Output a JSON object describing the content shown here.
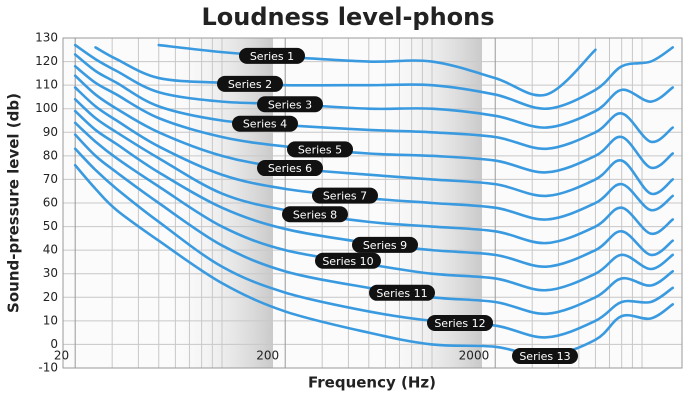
{
  "chart_data": {
    "type": "line",
    "title": "Loudness level-phons",
    "x_label": "Frequency (Hz)",
    "y_label": "Sound-pressure level (db)",
    "x": [
      20,
      25,
      31.5,
      50,
      100,
      200,
      500,
      1000,
      2000,
      3500,
      6000,
      8000,
      11000,
      14000
    ],
    "xscale": "log",
    "xlim": [
      17.5,
      15500
    ],
    "xticks": [
      20,
      200,
      2000
    ],
    "x_minor_ticks": [
      30,
      40,
      50,
      60,
      70,
      80,
      90,
      100,
      300,
      400,
      500,
      600,
      700,
      800,
      900,
      1000,
      3000,
      4000,
      5000,
      6000,
      7000,
      8000,
      9000,
      10000
    ],
    "ylim": [
      -10,
      130
    ],
    "yticks": [
      -10,
      0,
      10,
      20,
      30,
      40,
      50,
      60,
      70,
      80,
      90,
      100,
      110,
      120,
      130
    ],
    "grid": true,
    "color": "#3a9ae0",
    "series": [
      {
        "name": "Series 1",
        "values": [
          null,
          null,
          null,
          127,
          124,
          122,
          120,
          120,
          113,
          106,
          125,
          null,
          null,
          null
        ]
      },
      {
        "name": "Series 2",
        "values": [
          null,
          126,
          121,
          113,
          111,
          110,
          110,
          110,
          106,
          100,
          108,
          118,
          120,
          126
        ]
      },
      {
        "name": "Series 3",
        "values": [
          127,
          121,
          116,
          107,
          103,
          102,
          100,
          100,
          97,
          92,
          99,
          108,
          103,
          109
        ]
      },
      {
        "name": "Series 4",
        "values": [
          123,
          116,
          111,
          101,
          95,
          93,
          91,
          90,
          88,
          83,
          90,
          98,
          86,
          92
        ]
      },
      {
        "name": "Series 5",
        "values": [
          118,
          111,
          106,
          96,
          88,
          84,
          81,
          80,
          78,
          73,
          80,
          88,
          75,
          81
        ]
      },
      {
        "name": "Series 6",
        "values": [
          114,
          106,
          100,
          90,
          80,
          75,
          72,
          70,
          68,
          63,
          70,
          78,
          64,
          70
        ]
      },
      {
        "name": "Series 7",
        "values": [
          109,
          101,
          95,
          84,
          72,
          66,
          62,
          60,
          58,
          53,
          60,
          68,
          57,
          63
        ]
      },
      {
        "name": "Series 8",
        "values": [
          104,
          96,
          90,
          79,
          64,
          57,
          52,
          50,
          48,
          43,
          50,
          58,
          47,
          53
        ]
      },
      {
        "name": "Series 9",
        "values": [
          99,
          91,
          85,
          73,
          58,
          49,
          43,
          40,
          38,
          33,
          40,
          48,
          38,
          44
        ]
      },
      {
        "name": "Series 10",
        "values": [
          94,
          86,
          79,
          67,
          50,
          40,
          34,
          30,
          28,
          23,
          30,
          38,
          32,
          38
        ]
      },
      {
        "name": "Series 11",
        "values": [
          89,
          80,
          73,
          60,
          42,
          31,
          24,
          20,
          18,
          13,
          20,
          28,
          25,
          31
        ]
      },
      {
        "name": "Series 12",
        "values": [
          83,
          74,
          66,
          52,
          33,
          22,
          14,
          10,
          8,
          3,
          10,
          18,
          18,
          24
        ]
      },
      {
        "name": "Series 13",
        "values": [
          76,
          66,
          57,
          44,
          26,
          14,
          5,
          0,
          -1,
          -5,
          2,
          12,
          11,
          17
        ]
      }
    ]
  }
}
